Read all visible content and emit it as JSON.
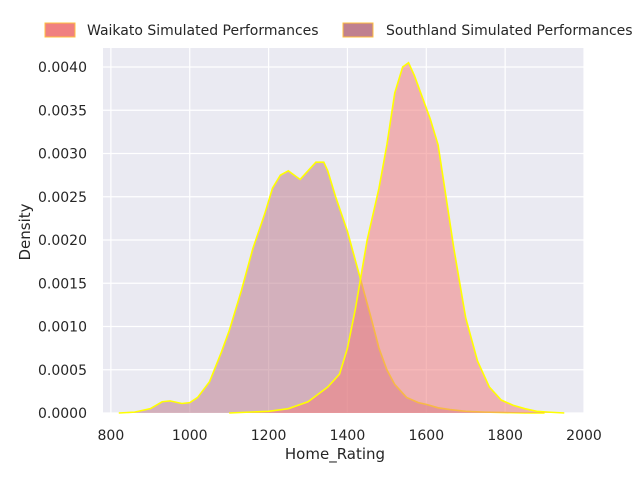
{
  "chart_data": {
    "type": "area",
    "subtype": "kde-density",
    "xlabel": "Home_Rating",
    "ylabel": "Density",
    "xlim": [
      780,
      2000
    ],
    "ylim": [
      0,
      0.00422
    ],
    "x_ticks": [
      800,
      1000,
      1200,
      1400,
      1600,
      1800,
      2000
    ],
    "x_tick_labels": [
      "800",
      "1000",
      "1200",
      "1400",
      "1600",
      "1800",
      "2000"
    ],
    "y_ticks": [
      0,
      0.0005,
      0.001,
      0.0015,
      0.002,
      0.0025,
      0.003,
      0.0035,
      0.004
    ],
    "y_tick_labels": [
      "0.0000",
      "0.0005",
      "0.0010",
      "0.0015",
      "0.0020",
      "0.0025",
      "0.0030",
      "0.0035",
      "0.0040"
    ],
    "grid": true,
    "legend_position": "top",
    "background": "#eaeaf2",
    "series": [
      {
        "name": "Waikato Simulated Performances",
        "fill": "#f08080",
        "edge": "#ffff00",
        "x": [
          1100,
          1150,
          1200,
          1250,
          1300,
          1350,
          1380,
          1400,
          1420,
          1450,
          1480,
          1500,
          1520,
          1540,
          1555,
          1570,
          1590,
          1610,
          1630,
          1650,
          1670,
          1700,
          1730,
          1760,
          1790,
          1820,
          1850,
          1880,
          1910,
          1950
        ],
        "y": [
          0.0,
          1e-05,
          2e-05,
          5e-05,
          0.00013,
          0.0003,
          0.00045,
          0.00075,
          0.0012,
          0.002,
          0.0026,
          0.0031,
          0.0037,
          0.004,
          0.00405,
          0.0039,
          0.00365,
          0.0034,
          0.0031,
          0.0025,
          0.0019,
          0.0011,
          0.0006,
          0.0003,
          0.00015,
          9e-05,
          5e-05,
          2e-05,
          1e-05,
          0.0
        ]
      },
      {
        "name": "Southland Simulated Performances",
        "fill": "#c0808f",
        "edge": "#ffff00",
        "x": [
          820,
          860,
          900,
          930,
          950,
          980,
          1000,
          1020,
          1050,
          1080,
          1100,
          1130,
          1160,
          1190,
          1210,
          1230,
          1250,
          1280,
          1300,
          1320,
          1340,
          1350,
          1370,
          1400,
          1430,
          1460,
          1480,
          1500,
          1520,
          1550,
          1580,
          1600,
          1630,
          1660,
          1700,
          1750,
          1800,
          1850,
          1900
        ],
        "y": [
          0.0,
          1e-05,
          5e-05,
          0.00013,
          0.00014,
          0.00011,
          0.00012,
          0.00018,
          0.00036,
          0.0007,
          0.00095,
          0.0014,
          0.0019,
          0.0023,
          0.0026,
          0.00275,
          0.0028,
          0.0027,
          0.0028,
          0.0029,
          0.0029,
          0.0028,
          0.0025,
          0.0021,
          0.0016,
          0.0011,
          0.00075,
          0.0005,
          0.00033,
          0.00018,
          0.00012,
          0.0001,
          6e-05,
          4e-05,
          2e-05,
          1e-05,
          5e-06,
          0.0,
          0.0
        ]
      }
    ]
  }
}
